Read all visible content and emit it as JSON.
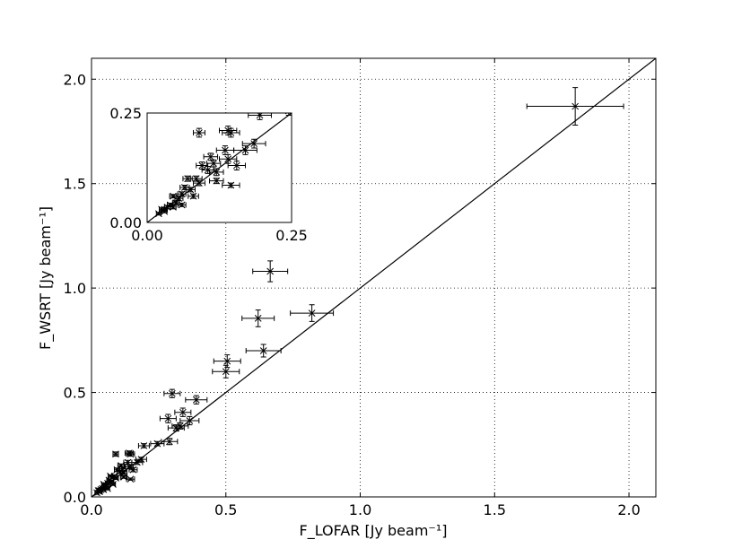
{
  "chart_data": {
    "type": "scatter",
    "xlabel": "F_LOFAR [Jy beam⁻¹]",
    "ylabel": "F_WSRT [Jy beam⁻¹]",
    "xlim": [
      0,
      2.1
    ],
    "ylim": [
      0,
      2.1
    ],
    "xticks": [
      {
        "value": 0,
        "label": "0.0"
      },
      0.5,
      {
        "value": 1,
        "label": "1.0"
      },
      1.5,
      {
        "value": 2,
        "label": "2.0"
      }
    ],
    "yticks": [
      {
        "value": 0,
        "label": "0.0"
      },
      0.5,
      {
        "value": 1,
        "label": "1.0"
      },
      1.5,
      {
        "value": 2,
        "label": "2.0"
      }
    ],
    "grid": true,
    "identity_line": true,
    "color": "#000000",
    "x": [
      1.8,
      0.665,
      0.82,
      0.62,
      0.64,
      0.505,
      0.5,
      0.3,
      0.39,
      0.34,
      0.285,
      0.365,
      0.33,
      0.315,
      0.29,
      0.245,
      0.195,
      0.145,
      0.09,
      0.14,
      0.185,
      0.17,
      0.135,
      0.14,
      0.155,
      0.145,
      0.115,
      0.12,
      0.105,
      0.085,
      0.09,
      0.12,
      0.07,
      0.065,
      0.075,
      0.06,
      0.055,
      0.045,
      0.05,
      0.04,
      0.035,
      0.03,
      0.025,
      0.03,
      0.045,
      0.02,
      0.06,
      0.08,
      0.095,
      0.11
    ],
    "values": [
      1.87,
      1.08,
      0.88,
      0.855,
      0.7,
      0.65,
      0.6,
      0.495,
      0.465,
      0.405,
      0.375,
      0.365,
      0.34,
      0.33,
      0.265,
      0.255,
      0.245,
      0.205,
      0.205,
      0.21,
      0.18,
      0.165,
      0.165,
      0.145,
      0.13,
      0.085,
      0.135,
      0.115,
      0.12,
      0.1,
      0.09,
      0.095,
      0.1,
      0.08,
      0.075,
      0.065,
      0.055,
      0.06,
      0.045,
      0.04,
      0.035,
      0.03,
      0.03,
      0.025,
      0.035,
      0.02,
      0.04,
      0.06,
      0.13,
      0.15
    ],
    "xerr": [
      0.18,
      0.065,
      0.08,
      0.06,
      0.065,
      0.05,
      0.05,
      0.03,
      0.04,
      0.03,
      0.03,
      0.035,
      0.03,
      0.03,
      0.03,
      0.025,
      0.02,
      0.015,
      0.01,
      0.015,
      0.02,
      0.02,
      0.015,
      0.015,
      0.015,
      0.015,
      0.012,
      0.012,
      0.01,
      0.01,
      0.01,
      0.012,
      0.008,
      0.008,
      0.008,
      0.007,
      0.007,
      0.006,
      0.006,
      0.005,
      0.005,
      0.005,
      0.004,
      0.004,
      0.005,
      0.004,
      0.007,
      0.009,
      0.01,
      0.012
    ],
    "yerr": [
      0.09,
      0.05,
      0.04,
      0.04,
      0.03,
      0.03,
      0.03,
      0.02,
      0.02,
      0.02,
      0.02,
      0.02,
      0.015,
      0.015,
      0.015,
      0.01,
      0.01,
      0.01,
      0.01,
      0.01,
      0.01,
      0.01,
      0.01,
      0.01,
      0.01,
      0.005,
      0.008,
      0.008,
      0.008,
      0.006,
      0.006,
      0.006,
      0.006,
      0.005,
      0.005,
      0.005,
      0.005,
      0.004,
      0.004,
      0.004,
      0.004,
      0.004,
      0.003,
      0.003,
      0.004,
      0.003,
      0.004,
      0.005,
      0.008,
      0.008
    ],
    "inset": {
      "xlim": [
        0,
        0.25
      ],
      "ylim": [
        0,
        0.25
      ],
      "xticks": [
        {
          "value": 0,
          "label": "0.00"
        },
        {
          "value": 0.25,
          "label": "0.25"
        }
      ],
      "yticks": [
        {
          "value": 0,
          "label": "0.00"
        },
        {
          "value": 0.25,
          "label": "0.25"
        }
      ]
    }
  }
}
